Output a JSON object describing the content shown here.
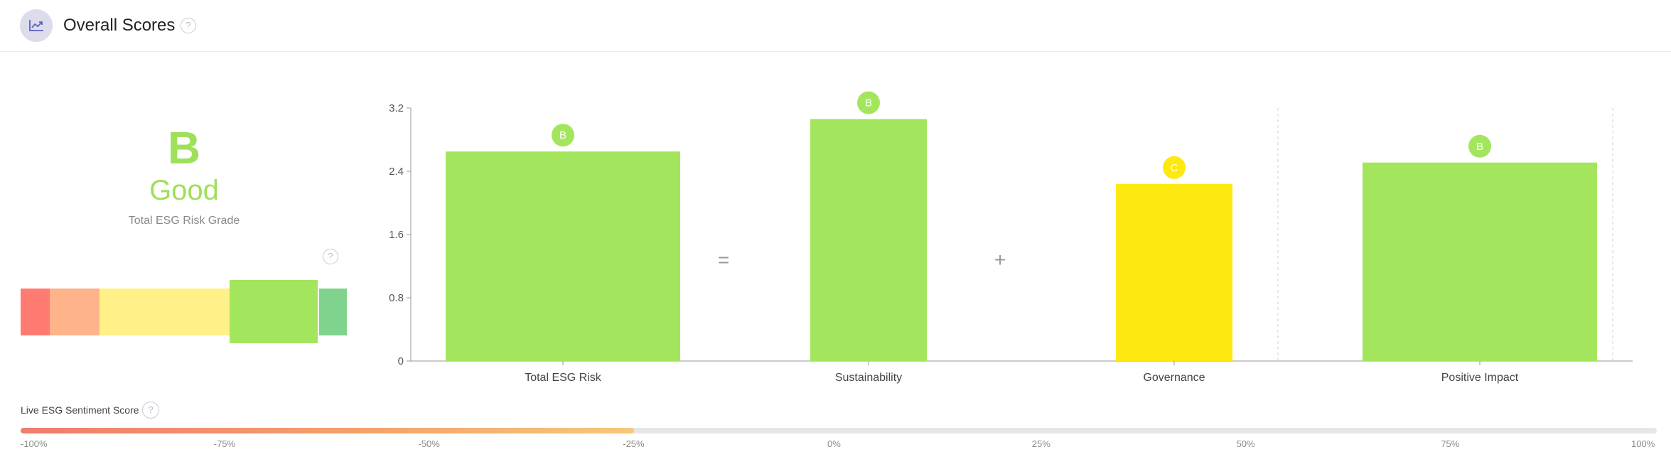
{
  "header": {
    "title": "Overall Scores",
    "icon": "chart-trend-icon",
    "help": "?"
  },
  "grade": {
    "letter": "B",
    "word": "Good",
    "caption": "Total ESG Risk Grade",
    "help": "?",
    "color": "#9ee05a"
  },
  "grade_scale": [
    {
      "color": "#ff7b72",
      "selected": false
    },
    {
      "color": "#ffb38a",
      "selected": false
    },
    {
      "color": "#fff088",
      "selected": false
    },
    {
      "color": "#a3e55d",
      "selected": true
    },
    {
      "color": "#7fd38d",
      "selected": false
    }
  ],
  "chart_data": {
    "type": "bar",
    "categories": [
      "Total ESG Risk",
      "Sustainability",
      "Governance",
      "Positive Impact"
    ],
    "values": [
      2.65,
      3.06,
      2.24,
      2.51
    ],
    "grades": [
      "B",
      "B",
      "C",
      "B"
    ],
    "colors": [
      "#a3e55d",
      "#a3e55d",
      "#fde811",
      "#a3e55d"
    ],
    "operators": [
      "=",
      "+"
    ],
    "yticks": [
      "0",
      "0.8",
      "1.6",
      "2.4",
      "3.2"
    ],
    "ylim": [
      0,
      3.2
    ],
    "title": "",
    "xlabel": "",
    "ylabel": "",
    "grid": false
  },
  "sentiment": {
    "label": "Live ESG Sentiment Score",
    "help": "?",
    "value_percent": -25,
    "ticks": [
      "-100%",
      "-75%",
      "-50%",
      "-25%",
      "0%",
      "25%",
      "50%",
      "75%",
      "100%"
    ]
  }
}
